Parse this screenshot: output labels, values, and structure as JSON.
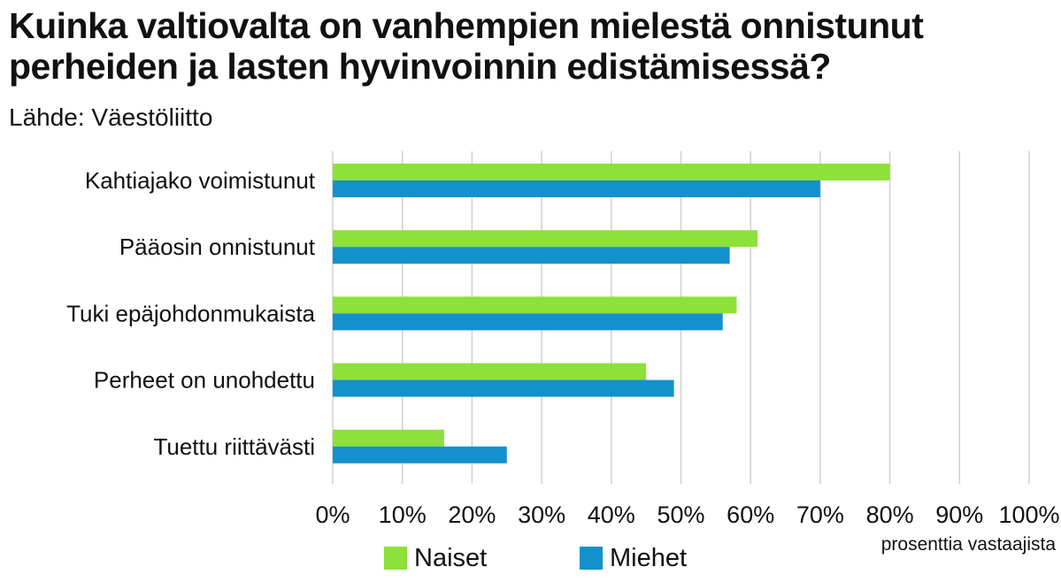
{
  "title": "Kuinka valtiovalta on vanhempien mielestä onnistunut perheiden ja lasten hyvinvoinnin edistämisessä?",
  "subtitle": "Lähde: Väestöliitto",
  "colors": {
    "naiset": "#8ee03a",
    "miehet": "#1391cd",
    "grid": "#d0d0d0"
  },
  "legend": {
    "naiset": "Naiset",
    "miehet": "Miehet"
  },
  "chart_data": {
    "type": "bar",
    "orientation": "horizontal",
    "title": "Kuinka valtiovalta on vanhempien mielestä onnistunut perheiden ja lasten hyvinvoinnin edistämisessä?",
    "xlabel": "prosenttia vastaajista",
    "ylabel": "",
    "xlim": [
      0,
      100
    ],
    "ticks": [
      "0%",
      "10%",
      "20%",
      "30%",
      "40%",
      "50%",
      "60%",
      "70%",
      "80%",
      "90%",
      "100%"
    ],
    "categories": [
      "Kahtiajako voimistunut",
      "Pääosin onnistunut",
      "Tuki epäjohdonmukaista",
      "Perheet on unohdettu",
      "Tuettu riittävästi"
    ],
    "series": [
      {
        "name": "Naiset",
        "values": [
          80,
          61,
          58,
          45,
          16
        ]
      },
      {
        "name": "Miehet",
        "values": [
          70,
          57,
          56,
          49,
          25
        ]
      }
    ],
    "grid": true,
    "legend_position": "bottom"
  }
}
